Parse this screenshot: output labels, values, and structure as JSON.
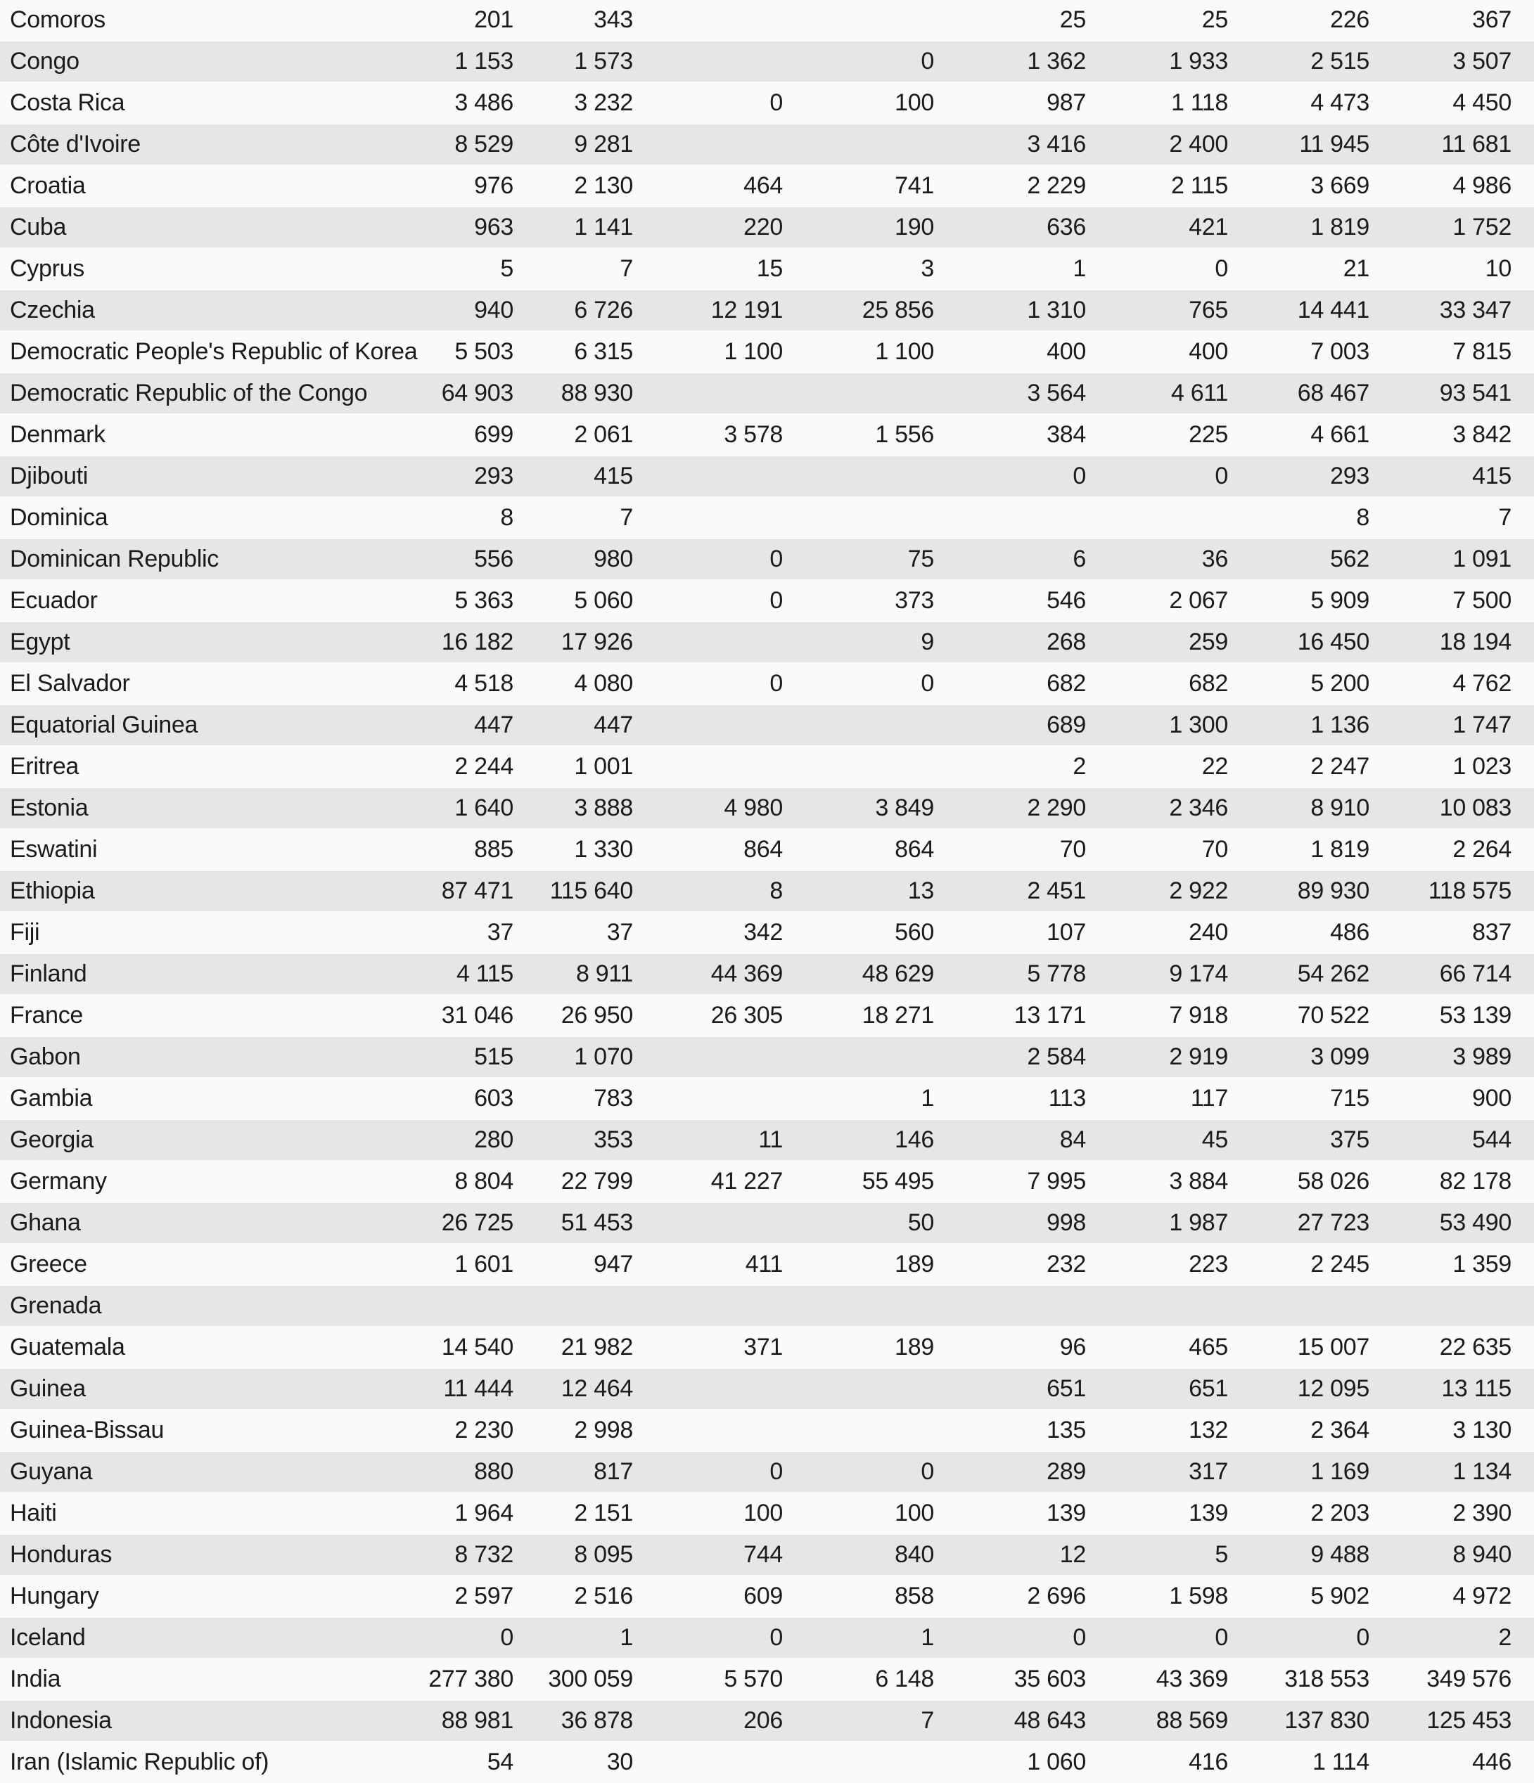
{
  "colors": {
    "stripe_gray": "#e6e6e6",
    "row_light": "#fafafa",
    "text": "#1b1b1b"
  },
  "table": {
    "rows": [
      {
        "country": "Comoros",
        "values": [
          "201",
          "343",
          "",
          "",
          "25",
          "25",
          "226",
          "367"
        ]
      },
      {
        "country": "Congo",
        "values": [
          "1 153",
          "1 573",
          "",
          "0",
          "1 362",
          "1 933",
          "2 515",
          "3 507"
        ]
      },
      {
        "country": "Costa Rica",
        "values": [
          "3 486",
          "3 232",
          "0",
          "100",
          "987",
          "1 118",
          "4 473",
          "4 450"
        ]
      },
      {
        "country": "Côte d'Ivoire",
        "values": [
          "8 529",
          "9 281",
          "",
          "",
          "3 416",
          "2 400",
          "11 945",
          "11 681"
        ]
      },
      {
        "country": "Croatia",
        "values": [
          "976",
          "2 130",
          "464",
          "741",
          "2 229",
          "2 115",
          "3 669",
          "4 986"
        ]
      },
      {
        "country": "Cuba",
        "values": [
          "963",
          "1 141",
          "220",
          "190",
          "636",
          "421",
          "1 819",
          "1 752"
        ]
      },
      {
        "country": "Cyprus",
        "values": [
          "5",
          "7",
          "15",
          "3",
          "1",
          "0",
          "21",
          "10"
        ]
      },
      {
        "country": "Czechia",
        "values": [
          "940",
          "6 726",
          "12 191",
          "25 856",
          "1 310",
          "765",
          "14 441",
          "33 347"
        ]
      },
      {
        "country": "Democratic People's Republic of Korea",
        "values": [
          "5 503",
          "6 315",
          "1 100",
          "1 100",
          "400",
          "400",
          "7 003",
          "7 815"
        ]
      },
      {
        "country": "Democratic Republic of the Congo",
        "values": [
          "64 903",
          "88 930",
          "",
          "",
          "3 564",
          "4 611",
          "68 467",
          "93 541"
        ]
      },
      {
        "country": "Denmark",
        "values": [
          "699",
          "2 061",
          "3 578",
          "1 556",
          "384",
          "225",
          "4 661",
          "3 842"
        ]
      },
      {
        "country": "Djibouti",
        "values": [
          "293",
          "415",
          "",
          "",
          "0",
          "0",
          "293",
          "415"
        ]
      },
      {
        "country": "Dominica",
        "values": [
          "8",
          "7",
          "",
          "",
          "",
          "",
          "8",
          "7"
        ]
      },
      {
        "country": "Dominican Republic",
        "values": [
          "556",
          "980",
          "0",
          "75",
          "6",
          "36",
          "562",
          "1 091"
        ]
      },
      {
        "country": "Ecuador",
        "values": [
          "5 363",
          "5 060",
          "0",
          "373",
          "546",
          "2 067",
          "5 909",
          "7 500"
        ]
      },
      {
        "country": "Egypt",
        "values": [
          "16 182",
          "17 926",
          "",
          "9",
          "268",
          "259",
          "16 450",
          "18 194"
        ]
      },
      {
        "country": "El Salvador",
        "values": [
          "4 518",
          "4 080",
          "0",
          "0",
          "682",
          "682",
          "5 200",
          "4 762"
        ]
      },
      {
        "country": "Equatorial Guinea",
        "values": [
          "447",
          "447",
          "",
          "",
          "689",
          "1 300",
          "1 136",
          "1 747"
        ]
      },
      {
        "country": "Eritrea",
        "values": [
          "2 244",
          "1 001",
          "",
          "",
          "2",
          "22",
          "2 247",
          "1 023"
        ]
      },
      {
        "country": "Estonia",
        "values": [
          "1 640",
          "3 888",
          "4 980",
          "3 849",
          "2 290",
          "2 346",
          "8 910",
          "10 083"
        ]
      },
      {
        "country": "Eswatini",
        "values": [
          "885",
          "1 330",
          "864",
          "864",
          "70",
          "70",
          "1 819",
          "2 264"
        ]
      },
      {
        "country": "Ethiopia",
        "values": [
          "87 471",
          "115 640",
          "8",
          "13",
          "2 451",
          "2 922",
          "89 930",
          "118 575"
        ]
      },
      {
        "country": "Fiji",
        "values": [
          "37",
          "37",
          "342",
          "560",
          "107",
          "240",
          "486",
          "837"
        ]
      },
      {
        "country": "Finland",
        "values": [
          "4 115",
          "8 911",
          "44 369",
          "48 629",
          "5 778",
          "9 174",
          "54 262",
          "66 714"
        ]
      },
      {
        "country": "France",
        "values": [
          "31 046",
          "26 950",
          "26 305",
          "18 271",
          "13 171",
          "7 918",
          "70 522",
          "53 139"
        ]
      },
      {
        "country": "Gabon",
        "values": [
          "515",
          "1 070",
          "",
          "",
          "2 584",
          "2 919",
          "3 099",
          "3 989"
        ]
      },
      {
        "country": "Gambia",
        "values": [
          "603",
          "783",
          "",
          "1",
          "113",
          "117",
          "715",
          "900"
        ]
      },
      {
        "country": "Georgia",
        "values": [
          "280",
          "353",
          "11",
          "146",
          "84",
          "45",
          "375",
          "544"
        ]
      },
      {
        "country": "Germany",
        "values": [
          "8 804",
          "22 799",
          "41 227",
          "55 495",
          "7 995",
          "3 884",
          "58 026",
          "82 178"
        ]
      },
      {
        "country": "Ghana",
        "values": [
          "26 725",
          "51 453",
          "",
          "50",
          "998",
          "1 987",
          "27 723",
          "53 490"
        ]
      },
      {
        "country": "Greece",
        "values": [
          "1 601",
          "947",
          "411",
          "189",
          "232",
          "223",
          "2 245",
          "1 359"
        ]
      },
      {
        "country": "Grenada",
        "values": [
          "",
          "",
          "",
          "",
          "",
          "",
          "",
          ""
        ]
      },
      {
        "country": "Guatemala",
        "values": [
          "14 540",
          "21 982",
          "371",
          "189",
          "96",
          "465",
          "15 007",
          "22 635"
        ]
      },
      {
        "country": "Guinea",
        "values": [
          "11 444",
          "12 464",
          "",
          "",
          "651",
          "651",
          "12 095",
          "13 115"
        ]
      },
      {
        "country": "Guinea-Bissau",
        "values": [
          "2 230",
          "2 998",
          "",
          "",
          "135",
          "132",
          "2 364",
          "3 130"
        ]
      },
      {
        "country": "Guyana",
        "values": [
          "880",
          "817",
          "0",
          "0",
          "289",
          "317",
          "1 169",
          "1 134"
        ]
      },
      {
        "country": "Haiti",
        "values": [
          "1 964",
          "2 151",
          "100",
          "100",
          "139",
          "139",
          "2 203",
          "2 390"
        ]
      },
      {
        "country": "Honduras",
        "values": [
          "8 732",
          "8 095",
          "744",
          "840",
          "12",
          "5",
          "9 488",
          "8 940"
        ]
      },
      {
        "country": "Hungary",
        "values": [
          "2 597",
          "2 516",
          "609",
          "858",
          "2 696",
          "1 598",
          "5 902",
          "4 972"
        ]
      },
      {
        "country": "Iceland",
        "values": [
          "0",
          "1",
          "0",
          "1",
          "0",
          "0",
          "0",
          "2"
        ]
      },
      {
        "country": "India",
        "values": [
          "277 380",
          "300 059",
          "5 570",
          "6 148",
          "35 603",
          "43 369",
          "318 553",
          "349 576"
        ]
      },
      {
        "country": "Indonesia",
        "values": [
          "88 981",
          "36 878",
          "206",
          "7",
          "48 643",
          "88 569",
          "137 830",
          "125 453"
        ]
      },
      {
        "country": "Iran (Islamic Republic of)",
        "values": [
          "54",
          "30",
          "",
          "",
          "1 060",
          "416",
          "1 114",
          "446"
        ]
      }
    ]
  }
}
